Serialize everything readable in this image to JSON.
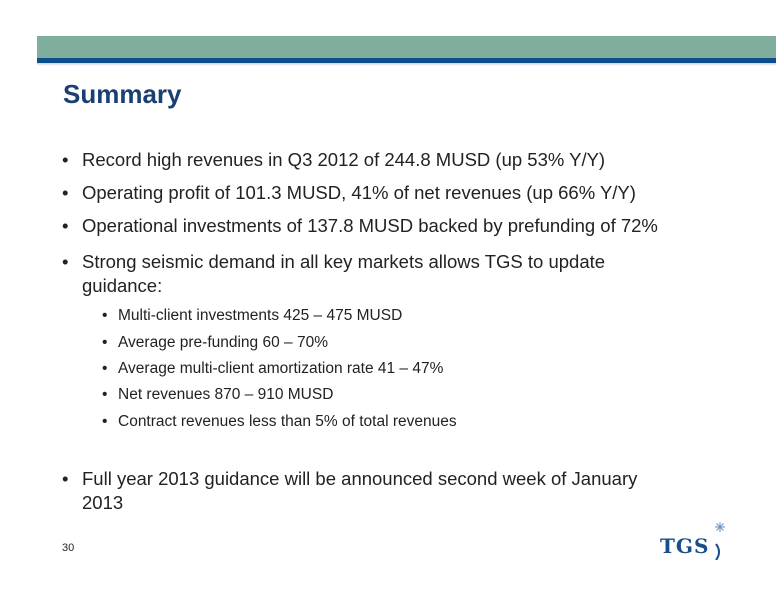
{
  "slide": {
    "title": "Summary",
    "page_number": "30"
  },
  "bullets": [
    {
      "text": "Record high revenues in Q3 2012 of 244.8 MUSD (up 53% Y/Y)"
    },
    {
      "text": "Operating profit of 101.3 MUSD, 41% of net revenues (up 66% Y/Y)"
    },
    {
      "text": "Operational investments of 137.8 MUSD backed by prefunding of 72%"
    },
    {
      "text": "Strong seismic demand in all key markets allows TGS to update guidance:"
    }
  ],
  "sub_bullets": [
    {
      "text": "Multi-client investments  425 – 475 MUSD"
    },
    {
      "text": "Average pre-funding 60 – 70%"
    },
    {
      "text": "Average multi-client amortization rate 41 – 47%"
    },
    {
      "text": "Net revenues  870 – 910 MUSD"
    },
    {
      "text": "Contract revenues less than 5% of total revenues"
    }
  ],
  "final_bullet": {
    "text": "Full year 2013 guidance will be announced second week of January 2013"
  },
  "bullet_symbol": "•",
  "logo": {
    "text": "TGS",
    "icon": "tgs-logo-icon"
  },
  "colors": {
    "header_band": "#7fae9c",
    "header_stripe": "#0d4f8c",
    "title": "#1a3f73",
    "logo": "#1a4d8c"
  }
}
